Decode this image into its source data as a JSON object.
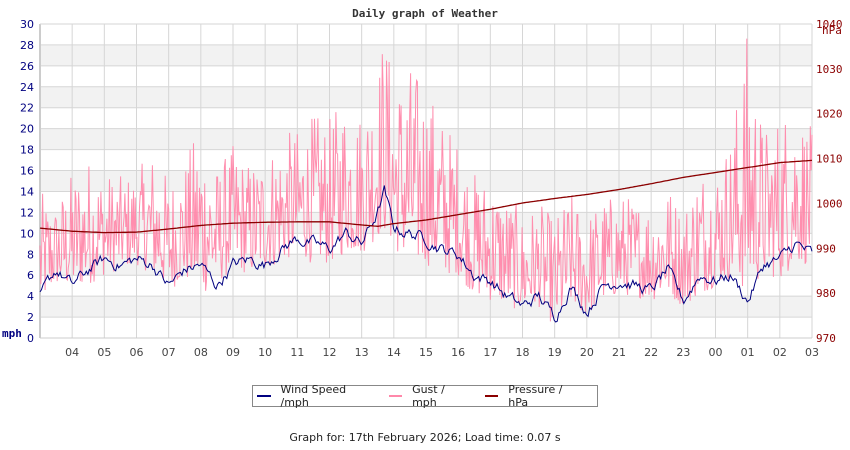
{
  "chart_data": {
    "type": "line",
    "title": "Daily graph of Weather",
    "xlabel": "",
    "ylabel": "mph",
    "ylabel_right": "hPa",
    "ylim": [
      0,
      30
    ],
    "ylim_right": [
      970,
      1040
    ],
    "grid": true,
    "legend_position": "bottom",
    "y_ticks": [
      "0",
      "2",
      "4",
      "6",
      "8",
      "10",
      "12",
      "14",
      "16",
      "18",
      "20",
      "22",
      "24",
      "26",
      "28",
      "30"
    ],
    "y_ticks_right": [
      "970",
      "980",
      "990",
      "1000",
      "1010",
      "1020",
      "1030",
      "1040"
    ],
    "x_ticks": [
      "04",
      "05",
      "06",
      "07",
      "08",
      "09",
      "10",
      "11",
      "12",
      "13",
      "14",
      "15",
      "16",
      "17",
      "18",
      "19",
      "20",
      "21",
      "22",
      "23",
      "00",
      "01",
      "02",
      "03"
    ],
    "series": [
      {
        "name": "Wind Speed /mph",
        "color": "#000080",
        "axis": "left",
        "x_hours": [
          3.0,
          3.5,
          4.0,
          4.5,
          5.0,
          5.5,
          6.0,
          6.5,
          7.0,
          7.5,
          8.0,
          8.5,
          9.0,
          9.5,
          10.0,
          10.5,
          11.0,
          11.5,
          12.0,
          12.5,
          13.0,
          13.5,
          13.7,
          14.0,
          14.5,
          15.0,
          15.5,
          16.0,
          16.5,
          17.0,
          17.5,
          18.0,
          18.5,
          19.0,
          19.5,
          20.0,
          20.5,
          21.0,
          21.5,
          22.0,
          22.5,
          23.0,
          23.5,
          24.0,
          24.5,
          25.0,
          25.5,
          26.0,
          26.5,
          27.0
        ],
        "values": [
          4.0,
          6.5,
          5.0,
          6.5,
          7.5,
          7.0,
          7.5,
          7.0,
          5.0,
          6.5,
          7.0,
          5.0,
          7.0,
          7.5,
          7.0,
          8.5,
          9.5,
          9.0,
          8.5,
          10.0,
          9.0,
          12.0,
          14.0,
          10.5,
          10.0,
          9.5,
          8.5,
          8.0,
          6.0,
          5.5,
          4.0,
          3.0,
          4.0,
          2.0,
          5.0,
          2.5,
          5.0,
          5.5,
          5.0,
          4.5,
          6.5,
          3.5,
          6.0,
          5.5,
          6.0,
          3.5,
          7.0,
          7.5,
          9.0,
          8.0
        ]
      },
      {
        "name": "Gust / mph",
        "color": "#ff88aa",
        "axis": "left",
        "x_hours": [
          3.0,
          3.5,
          4.0,
          4.5,
          5.0,
          5.5,
          6.0,
          6.5,
          7.0,
          7.5,
          8.0,
          8.5,
          9.0,
          9.5,
          10.0,
          10.5,
          11.0,
          11.5,
          12.0,
          12.5,
          13.0,
          13.5,
          13.7,
          14.0,
          14.5,
          15.0,
          15.5,
          16.0,
          16.5,
          17.0,
          17.5,
          18.0,
          18.5,
          19.0,
          19.5,
          20.0,
          20.5,
          21.0,
          21.5,
          22.0,
          22.5,
          23.0,
          23.5,
          24.0,
          24.5,
          25.0,
          25.5,
          26.0,
          26.5,
          27.0
        ],
        "peaks": [
          14.0,
          13.0,
          16.0,
          17.5,
          16.0,
          15.5,
          16.0,
          18.0,
          15.5,
          17.0,
          21.0,
          16.5,
          18.5,
          17.0,
          18.0,
          19.5,
          20.0,
          21.5,
          21.0,
          23.5,
          22.0,
          26.5,
          30.0,
          25.0,
          26.5,
          24.5,
          21.5,
          19.0,
          16.0,
          15.5,
          14.0,
          12.0,
          13.0,
          11.5,
          14.0,
          12.0,
          13.5,
          14.0,
          13.5,
          13.5,
          15.0,
          12.5,
          17.0,
          16.5,
          20.0,
          30.0,
          20.0,
          22.0,
          23.0,
          20.0
        ],
        "troughs": [
          3.0,
          5.0,
          4.5,
          5.0,
          6.0,
          6.5,
          7.0,
          6.0,
          4.5,
          5.5,
          4.0,
          5.0,
          6.5,
          6.0,
          6.5,
          7.0,
          8.0,
          7.0,
          7.0,
          8.0,
          8.0,
          9.5,
          10.0,
          8.5,
          6.5,
          7.0,
          6.0,
          6.0,
          4.0,
          3.5,
          3.0,
          2.5,
          3.0,
          1.0,
          3.0,
          2.0,
          3.5,
          4.0,
          4.0,
          3.5,
          4.0,
          3.0,
          4.0,
          5.0,
          5.5,
          4.0,
          6.0,
          5.5,
          7.0,
          7.0
        ]
      },
      {
        "name": "Pressure / hPa",
        "color": "#8b0000",
        "axis": "right",
        "x_hours": [
          3.0,
          4.0,
          5.0,
          6.0,
          7.0,
          8.0,
          9.0,
          10.0,
          11.0,
          12.0,
          13.0,
          13.5,
          14.0,
          15.0,
          16.0,
          17.0,
          18.0,
          19.0,
          20.0,
          21.0,
          22.0,
          23.0,
          24.0,
          25.0,
          26.0,
          27.0
        ],
        "values": [
          994.5,
          993.8,
          993.5,
          993.6,
          994.3,
          995.1,
          995.6,
          995.8,
          995.9,
          995.9,
          995.2,
          994.9,
          995.5,
          996.3,
          997.5,
          998.7,
          1000.1,
          1001.1,
          1002.0,
          1003.1,
          1004.4,
          1005.8,
          1006.9,
          1008.0,
          1009.1,
          1009.6
        ]
      }
    ]
  },
  "labels": {
    "title": "Daily graph of Weather",
    "unit_left": "mph",
    "unit_right": "hPa"
  },
  "legend": [
    {
      "label": "Wind Speed /mph",
      "color": "#000080"
    },
    {
      "label": "Gust / mph",
      "color": "#ff88aa"
    },
    {
      "label": "Pressure / hPa",
      "color": "#8b0000"
    }
  ],
  "footer": "Graph for: 17th February 2026; Load time: 0.07 s"
}
